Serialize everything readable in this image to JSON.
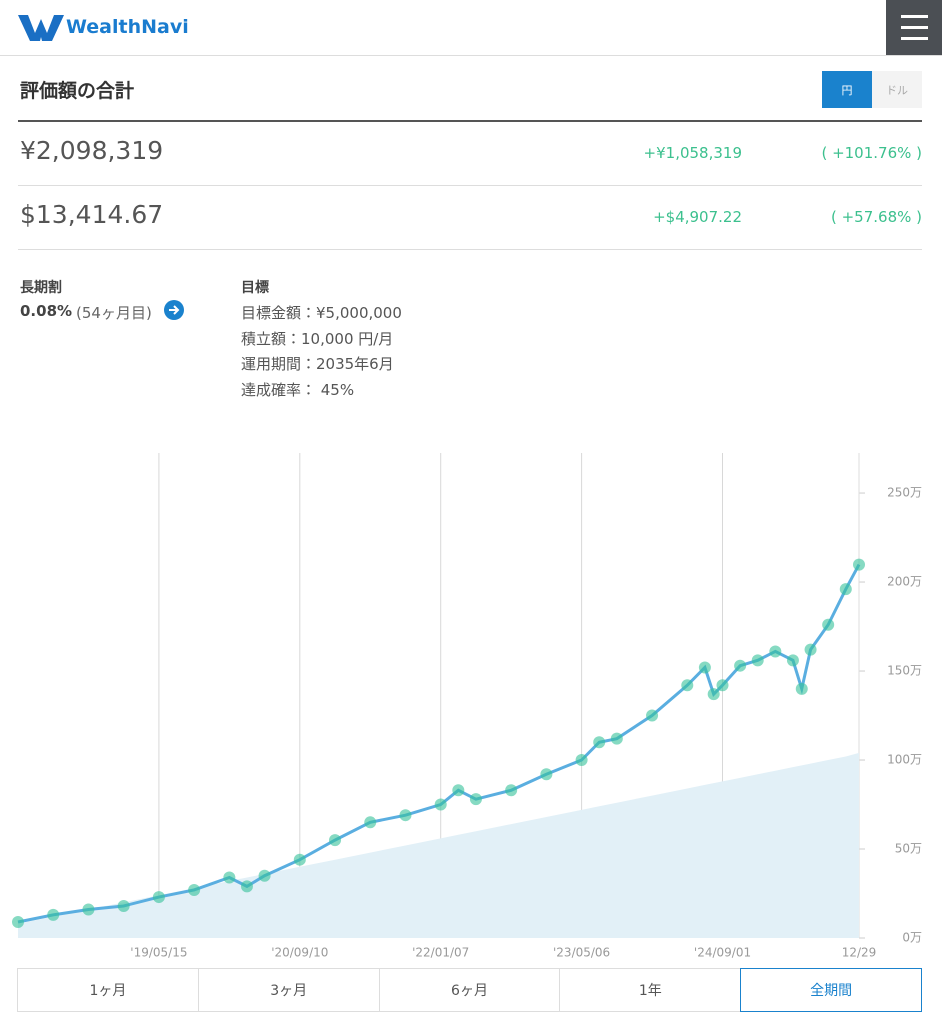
{
  "header": {
    "brand": "WealthNavi"
  },
  "summary": {
    "title": "評価額の合計",
    "currency": {
      "options": [
        "円",
        "ドル"
      ],
      "selected": 0
    },
    "rows": [
      [
        "¥2,098,319",
        "+¥1,058,319",
        "( +101.76% )"
      ],
      [
        "$13,414.67",
        "+$4,907.22",
        "( +57.68% )"
      ]
    ]
  },
  "discount": {
    "label": "長期割",
    "value": "0.08%",
    "note": "(54ヶ月目)"
  },
  "goal": {
    "title": "目標",
    "lines": [
      "目標金額：¥5,000,000",
      "積立額：10,000 円/月",
      "運用期間：2035年6月",
      "達成確率： 45%"
    ]
  },
  "chart_data": {
    "type": "line",
    "x": [
      0,
      4,
      8,
      12,
      16,
      20,
      24,
      26,
      28,
      32,
      36,
      40,
      44,
      48,
      50,
      52,
      56,
      60,
      64,
      66,
      68,
      72,
      76,
      78,
      79,
      80,
      82,
      84,
      86,
      88,
      89,
      90,
      92,
      94,
      95.5
    ],
    "series": [
      {
        "type": "area",
        "color": "#e2f0f7",
        "values": [
          8,
          12,
          16,
          20,
          24,
          28,
          32,
          34,
          36,
          40,
          44,
          48,
          52,
          56,
          58,
          60,
          64,
          68,
          72,
          74,
          76,
          80,
          84,
          86,
          87,
          88,
          90,
          92,
          94,
          96,
          97,
          98,
          100,
          102,
          104
        ]
      },
      {
        "type": "line",
        "color": "#35c29a",
        "values": [
          9,
          13,
          16,
          18,
          23,
          27,
          34,
          29,
          35,
          44,
          55,
          65,
          69,
          75,
          83,
          78,
          83,
          92,
          100,
          110,
          112,
          125,
          142,
          152,
          137,
          142,
          153,
          156,
          161,
          156,
          140,
          162,
          176,
          196,
          209.8
        ]
      }
    ],
    "xlim": [
      0,
      95.5
    ],
    "xticks": [
      {
        "value": 16,
        "label": "'19/05/15"
      },
      {
        "value": 32,
        "label": "'20/09/10"
      },
      {
        "value": 48,
        "label": "'22/01/07"
      },
      {
        "value": 64,
        "label": "'23/05/06"
      },
      {
        "value": 80,
        "label": "'24/09/01"
      },
      {
        "value": 95.5,
        "label": "12/29"
      }
    ],
    "ylim": [
      0,
      272.5
    ],
    "yticks": [
      {
        "value": 0,
        "label": "0万"
      },
      {
        "value": 50,
        "label": "50万"
      },
      {
        "value": 100,
        "label": "100万"
      },
      {
        "value": 150,
        "label": "150万"
      },
      {
        "value": 200,
        "label": "200万"
      },
      {
        "value": 250,
        "label": "250万"
      }
    ],
    "grid": true
  },
  "periods": {
    "options": [
      "1ヶ月",
      "3ヶ月",
      "6ヶ月",
      "1年",
      "全期間"
    ],
    "selected": 4
  }
}
